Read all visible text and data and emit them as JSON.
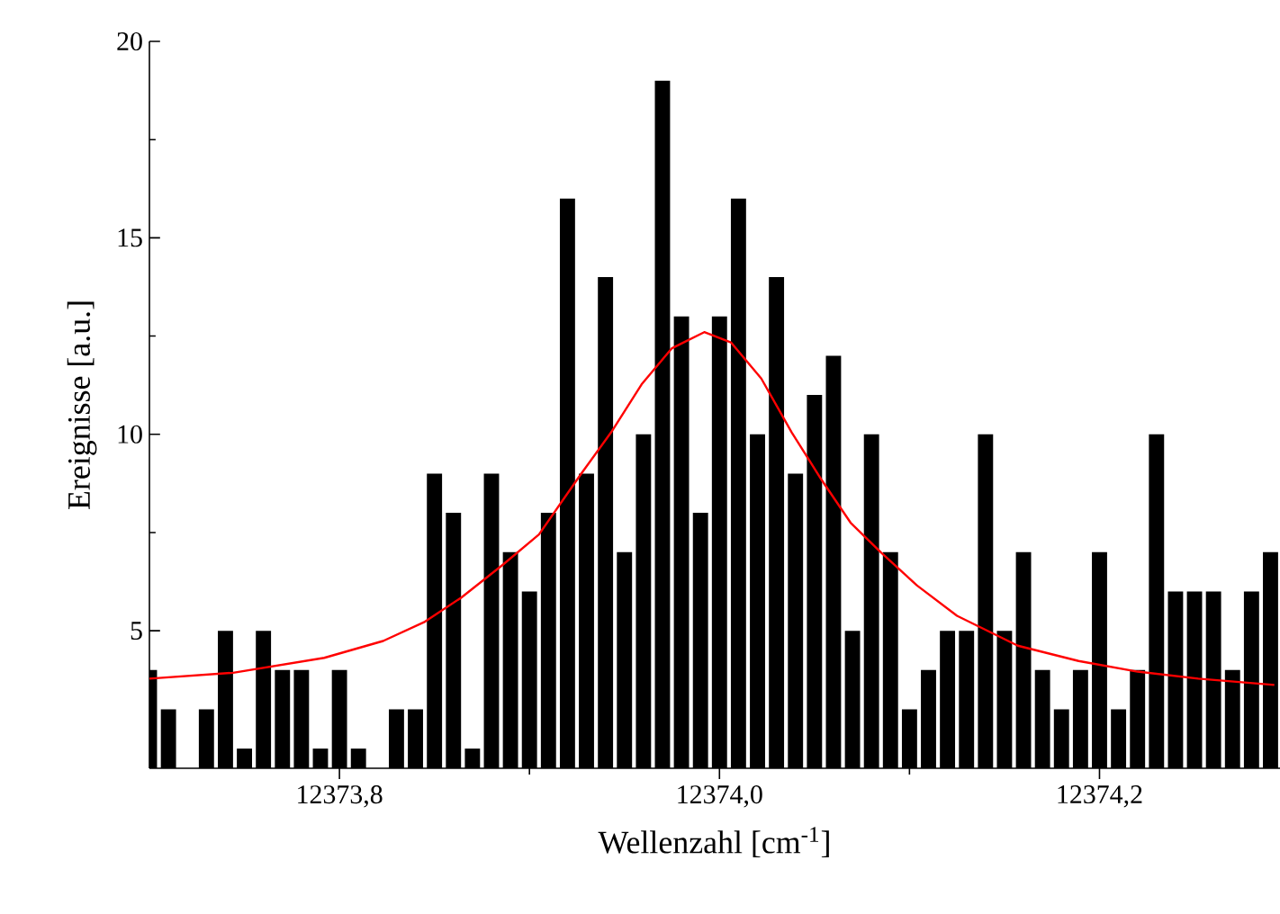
{
  "chart_data": {
    "type": "bar",
    "xlabel": "Wellenzahl [cm$^{-1}$]",
    "ylabel": "Ereignisse [a.u.]",
    "xlim": [
      12373.7,
      12374.295
    ],
    "ylim": [
      1.5,
      20
    ],
    "xticks": [
      {
        "value": 12373.8,
        "label": "12373,8"
      },
      {
        "value": 12374.0,
        "label": "12374,0"
      },
      {
        "value": 12374.2,
        "label": "12374,2"
      }
    ],
    "yticks": [
      5,
      10,
      15,
      20
    ],
    "series": [
      {
        "color": "#000000",
        "x": [
          12373.7,
          12373.71,
          12373.72,
          12373.73,
          12373.74,
          12373.75,
          12373.76,
          12373.77,
          12373.78,
          12373.79,
          12373.8,
          12373.81,
          12373.82,
          12373.83,
          12373.84,
          12373.85,
          12373.86,
          12373.87,
          12373.88,
          12373.89,
          12373.9,
          12373.91,
          12373.92,
          12373.93,
          12373.94,
          12373.95,
          12373.96,
          12373.97,
          12373.98,
          12373.99,
          12374.0,
          12374.01,
          12374.02,
          12374.03,
          12374.04,
          12374.05,
          12374.06,
          12374.07,
          12374.08,
          12374.09,
          12374.1,
          12374.11,
          12374.12,
          12374.13,
          12374.14,
          12374.15,
          12374.16,
          12374.17,
          12374.18,
          12374.19,
          12374.2,
          12374.21,
          12374.22,
          12374.23,
          12374.24,
          12374.25,
          12374.26,
          12374.27,
          12374.28,
          12374.29
        ],
        "values": [
          4,
          3,
          null,
          3,
          5,
          2,
          5,
          4,
          4,
          2,
          4,
          2,
          null,
          3,
          3,
          9,
          8,
          2,
          9,
          7,
          6,
          8,
          16,
          9,
          14,
          7,
          10,
          19,
          13,
          8,
          13,
          16,
          10,
          14,
          9,
          11,
          12,
          5,
          10,
          7,
          3,
          4,
          5,
          5,
          10,
          5,
          7,
          4,
          3,
          4,
          7,
          3,
          4,
          10,
          6,
          6,
          6,
          4,
          6,
          7
        ]
      },
      {
        "type": "line",
        "color": "#ff0000",
        "x": [
          12373.7,
          12373.744,
          12373.792,
          12373.823,
          12373.845,
          12373.864,
          12373.886,
          12373.905,
          12373.927,
          12373.943,
          12373.959,
          12373.975,
          12373.992,
          12374.006,
          12374.022,
          12374.038,
          12374.054,
          12374.069,
          12374.085,
          12374.104,
          12374.125,
          12374.157,
          12374.189,
          12374.22,
          12374.252,
          12374.292
        ],
        "values": [
          3.78,
          3.93,
          4.31,
          4.74,
          5.23,
          5.84,
          6.68,
          7.45,
          8.98,
          10.05,
          11.27,
          12.19,
          12.6,
          12.34,
          11.42,
          10.05,
          8.82,
          7.75,
          6.99,
          6.15,
          5.38,
          4.62,
          4.23,
          3.96,
          3.78,
          3.62
        ]
      }
    ]
  }
}
